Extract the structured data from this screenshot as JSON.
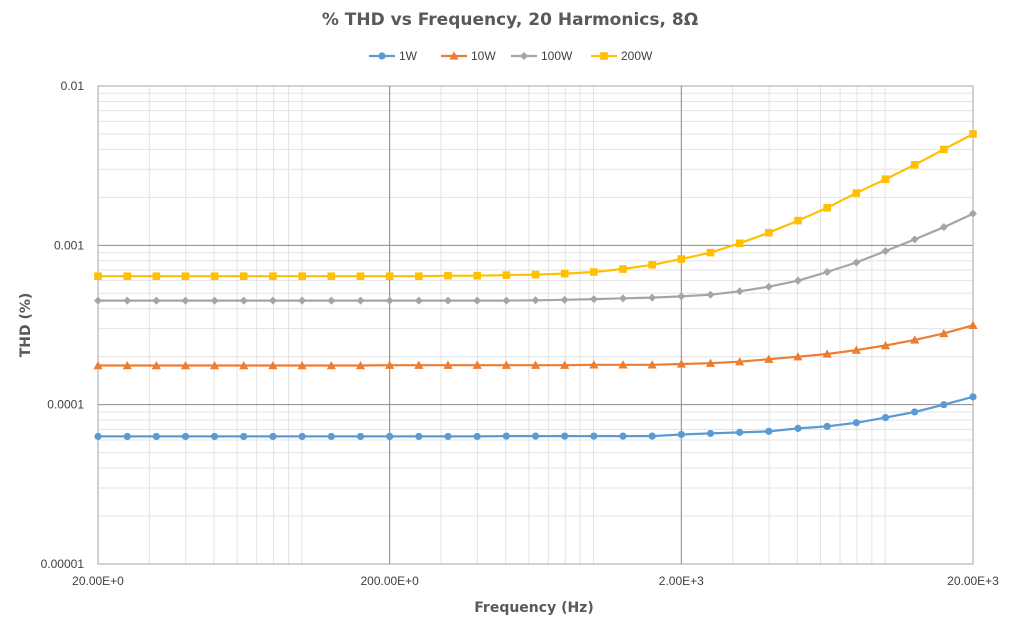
{
  "chart_data": {
    "type": "line",
    "title": "% THD vs Frequency, 20 Harmonics, 8Ω",
    "xlabel": "Frequency (Hz)",
    "ylabel": "THD (%)",
    "x_scale": "log",
    "y_scale": "log",
    "xlim": [
      20,
      20000
    ],
    "ylim": [
      1e-05,
      0.01
    ],
    "x_ticks": [
      20,
      200,
      2000,
      20000
    ],
    "x_tick_labels": [
      "20.00E+0",
      "200.00E+0",
      "2.00E+3",
      "20.00E+3"
    ],
    "y_ticks": [
      1e-05,
      0.0001,
      0.001,
      0.01
    ],
    "y_tick_labels": [
      "0.00001",
      "0.0001",
      "0.001",
      "0.01"
    ],
    "grid": true,
    "legend_position": "top",
    "x": [
      20,
      25.2,
      31.7,
      39.9,
      50.2,
      63.2,
      79.6,
      100.2,
      126.2,
      158.9,
      200,
      251.8,
      317,
      399.1,
      502.4,
      632.5,
      796.2,
      1002.4,
      1261.9,
      1588.7,
      2000,
      2517.9,
      3169.8,
      3990.5,
      5023.8,
      6324.6,
      7962.1,
      10023.7,
      12619.1,
      15886.6,
      20000
    ],
    "series": [
      {
        "name": "1W",
        "color": "#5B9BD5",
        "marker": "circle",
        "values": [
          6.32e-05,
          6.32e-05,
          6.32e-05,
          6.32e-05,
          6.32e-05,
          6.32e-05,
          6.32e-05,
          6.32e-05,
          6.32e-05,
          6.32e-05,
          6.32e-05,
          6.32e-05,
          6.32e-05,
          6.32e-05,
          6.35e-05,
          6.35e-05,
          6.35e-05,
          6.35e-05,
          6.35e-05,
          6.35e-05,
          6.5e-05,
          6.6e-05,
          6.7e-05,
          6.8e-05,
          7.1e-05,
          7.3e-05,
          7.7e-05,
          8.3e-05,
          9e-05,
          0.0001,
          0.000112
        ]
      },
      {
        "name": "10W",
        "color": "#ED7D31",
        "marker": "triangle",
        "values": [
          0.000176,
          0.000176,
          0.000176,
          0.000176,
          0.000176,
          0.000176,
          0.000176,
          0.000176,
          0.000176,
          0.000176,
          0.000177,
          0.000177,
          0.000177,
          0.000177,
          0.000177,
          0.000177,
          0.000177,
          0.000178,
          0.000178,
          0.000178,
          0.00018,
          0.000182,
          0.000186,
          0.000193,
          0.0002,
          0.000208,
          0.00022,
          0.000235,
          0.000255,
          0.00028,
          0.000315
        ]
      },
      {
        "name": "100W",
        "color": "#A5A5A5",
        "marker": "diamond",
        "values": [
          0.00045,
          0.00045,
          0.00045,
          0.00045,
          0.00045,
          0.00045,
          0.00045,
          0.00045,
          0.00045,
          0.00045,
          0.00045,
          0.00045,
          0.00045,
          0.00045,
          0.00045,
          0.000452,
          0.000455,
          0.00046,
          0.000465,
          0.00047,
          0.000478,
          0.00049,
          0.000515,
          0.00055,
          0.0006,
          0.00068,
          0.00078,
          0.00092,
          0.00109,
          0.0013,
          0.00158
        ]
      },
      {
        "name": "200W",
        "color": "#FFC000",
        "marker": "square",
        "values": [
          0.00064,
          0.00064,
          0.00064,
          0.00064,
          0.00064,
          0.00064,
          0.00064,
          0.00064,
          0.00064,
          0.00064,
          0.00064,
          0.00064,
          0.000645,
          0.000645,
          0.00065,
          0.000655,
          0.000665,
          0.00068,
          0.00071,
          0.000755,
          0.00082,
          0.0009,
          0.00103,
          0.0012,
          0.00143,
          0.00172,
          0.00213,
          0.0026,
          0.0032,
          0.004,
          0.005
        ]
      }
    ]
  }
}
